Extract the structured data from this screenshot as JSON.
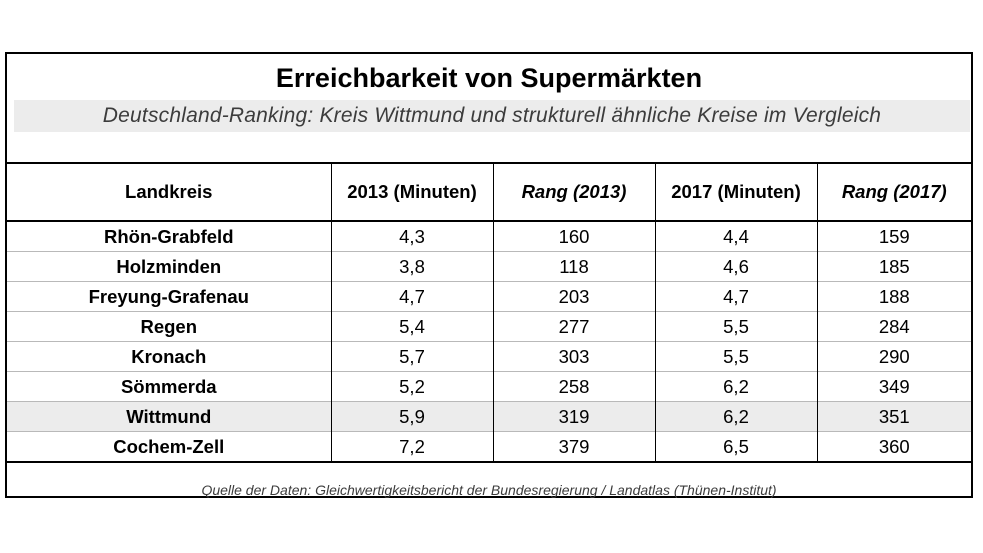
{
  "title": "Erreichbarkeit von Supermärkten",
  "subtitle": "Deutschland-Ranking: Kreis Wittmund und strukturell ähnliche Kreise im Vergleich",
  "table": {
    "headers": [
      "Landkreis",
      "2013 (Minuten)",
      "Rang (2013)",
      "2017 (Minuten)",
      "Rang (2017)"
    ],
    "highlight_color": "#ececec",
    "rows": [
      {
        "name": "Rhön-Grabfeld",
        "min2013": "4,3",
        "rank2013": "160",
        "min2017": "4,4",
        "rank2017": "159",
        "highlight": false
      },
      {
        "name": "Holzminden",
        "min2013": "3,8",
        "rank2013": "118",
        "min2017": "4,6",
        "rank2017": "185",
        "highlight": false
      },
      {
        "name": "Freyung-Grafenau",
        "min2013": "4,7",
        "rank2013": "203",
        "min2017": "4,7",
        "rank2017": "188",
        "highlight": false
      },
      {
        "name": "Regen",
        "min2013": "5,4",
        "rank2013": "277",
        "min2017": "5,5",
        "rank2017": "284",
        "highlight": false
      },
      {
        "name": "Kronach",
        "min2013": "5,7",
        "rank2013": "303",
        "min2017": "5,5",
        "rank2017": "290",
        "highlight": false
      },
      {
        "name": "Sömmerda",
        "min2013": "5,2",
        "rank2013": "258",
        "min2017": "6,2",
        "rank2017": "349",
        "highlight": false
      },
      {
        "name": "Wittmund",
        "min2013": "5,9",
        "rank2013": "319",
        "min2017": "6,2",
        "rank2017": "351",
        "highlight": true
      },
      {
        "name": "Cochem-Zell",
        "min2013": "7,2",
        "rank2013": "379",
        "min2017": "6,5",
        "rank2017": "360",
        "highlight": false
      }
    ]
  },
  "source": "Quelle der Daten: Gleichwertigkeitsbericht der Bundesregierung / Landatlas (Thünen-Institut)"
}
